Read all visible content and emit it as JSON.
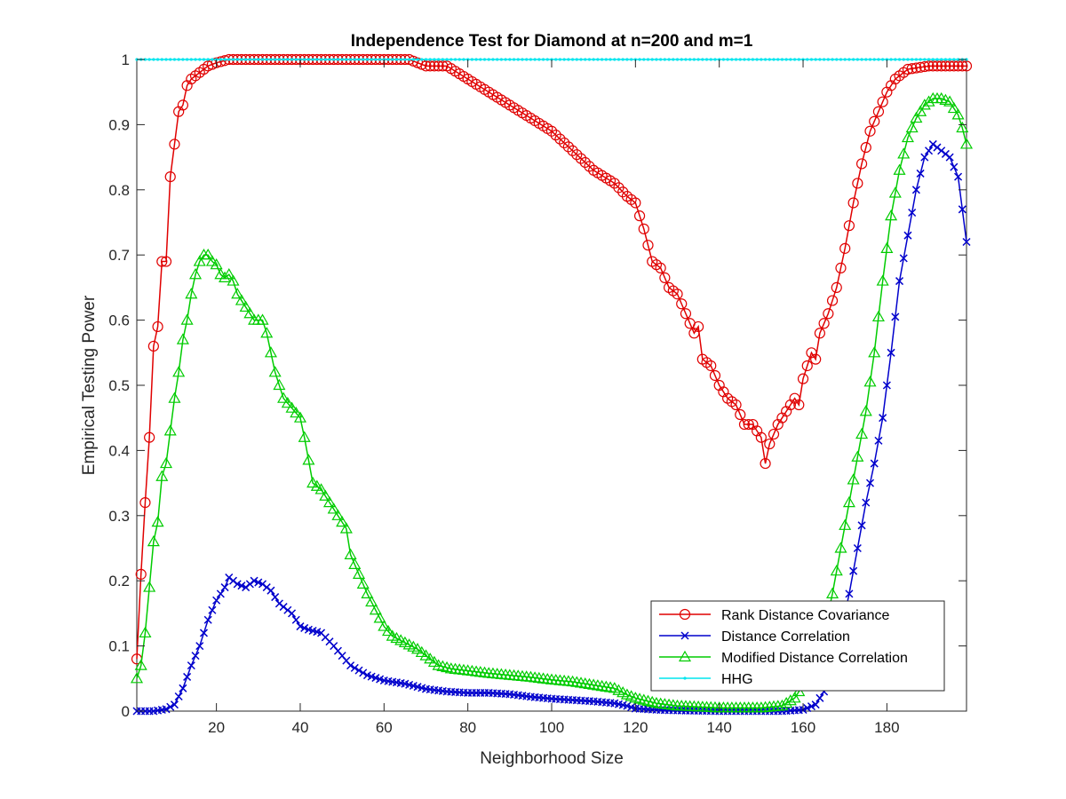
{
  "chart_data": {
    "type": "line",
    "title": "Independence Test for Diamond at n=200 and m=1",
    "xlabel": "Neighborhood Size",
    "ylabel": "Empirical Testing Power",
    "xlim": [
      1,
      199
    ],
    "ylim": [
      0,
      1
    ],
    "xticks": [
      20,
      40,
      60,
      80,
      100,
      120,
      140,
      160,
      180
    ],
    "yticks": [
      0,
      0.1,
      0.2,
      0.3,
      0.4,
      0.5,
      0.6,
      0.7,
      0.8,
      0.9,
      1
    ],
    "grid": false,
    "legend_position": "bottom-right",
    "series": [
      {
        "name": "Rank Distance Covariance",
        "color": "#E00000",
        "marker": "circle",
        "knots": [
          [
            1,
            0.08
          ],
          [
            2,
            0.21
          ],
          [
            3,
            0.32
          ],
          [
            4,
            0.42
          ],
          [
            5,
            0.56
          ],
          [
            6,
            0.59
          ],
          [
            7,
            0.69
          ],
          [
            8,
            0.69
          ],
          [
            9,
            0.82
          ],
          [
            10,
            0.87
          ],
          [
            11,
            0.92
          ],
          [
            12,
            0.93
          ],
          [
            13,
            0.96
          ],
          [
            14,
            0.97
          ],
          [
            16,
            0.98
          ],
          [
            18,
            0.99
          ],
          [
            20,
            0.995
          ],
          [
            23,
            1.0
          ],
          [
            66,
            1.0
          ],
          [
            70,
            0.99
          ],
          [
            75,
            0.99
          ],
          [
            80,
            0.97
          ],
          [
            85,
            0.95
          ],
          [
            90,
            0.93
          ],
          [
            95,
            0.91
          ],
          [
            100,
            0.89
          ],
          [
            105,
            0.86
          ],
          [
            110,
            0.83
          ],
          [
            115,
            0.81
          ],
          [
            118,
            0.79
          ],
          [
            120,
            0.78
          ],
          [
            122,
            0.74
          ],
          [
            124,
            0.69
          ],
          [
            126,
            0.68
          ],
          [
            128,
            0.65
          ],
          [
            130,
            0.64
          ],
          [
            132,
            0.61
          ],
          [
            134,
            0.58
          ],
          [
            135,
            0.59
          ],
          [
            136,
            0.54
          ],
          [
            138,
            0.53
          ],
          [
            140,
            0.5
          ],
          [
            142,
            0.48
          ],
          [
            144,
            0.47
          ],
          [
            146,
            0.44
          ],
          [
            148,
            0.44
          ],
          [
            150,
            0.42
          ],
          [
            151,
            0.38
          ],
          [
            152,
            0.41
          ],
          [
            154,
            0.44
          ],
          [
            156,
            0.46
          ],
          [
            158,
            0.48
          ],
          [
            159,
            0.47
          ],
          [
            160,
            0.51
          ],
          [
            162,
            0.55
          ],
          [
            163,
            0.54
          ],
          [
            164,
            0.58
          ],
          [
            166,
            0.61
          ],
          [
            168,
            0.65
          ],
          [
            170,
            0.71
          ],
          [
            172,
            0.78
          ],
          [
            174,
            0.84
          ],
          [
            176,
            0.89
          ],
          [
            178,
            0.92
          ],
          [
            180,
            0.95
          ],
          [
            182,
            0.97
          ],
          [
            185,
            0.985
          ],
          [
            190,
            0.99
          ],
          [
            199,
            0.99
          ]
        ]
      },
      {
        "name": "Distance Correlation",
        "color": "#0000CC",
        "marker": "x",
        "knots": [
          [
            1,
            0.0
          ],
          [
            5,
            0.0
          ],
          [
            8,
            0.003
          ],
          [
            10,
            0.01
          ],
          [
            12,
            0.035
          ],
          [
            14,
            0.07
          ],
          [
            16,
            0.1
          ],
          [
            18,
            0.14
          ],
          [
            20,
            0.17
          ],
          [
            22,
            0.19
          ],
          [
            23,
            0.205
          ],
          [
            25,
            0.195
          ],
          [
            27,
            0.19
          ],
          [
            29,
            0.2
          ],
          [
            31,
            0.195
          ],
          [
            33,
            0.185
          ],
          [
            35,
            0.165
          ],
          [
            38,
            0.15
          ],
          [
            40,
            0.13
          ],
          [
            42,
            0.125
          ],
          [
            45,
            0.12
          ],
          [
            48,
            0.1
          ],
          [
            52,
            0.07
          ],
          [
            56,
            0.055
          ],
          [
            60,
            0.047
          ],
          [
            65,
            0.042
          ],
          [
            70,
            0.034
          ],
          [
            75,
            0.03
          ],
          [
            80,
            0.028
          ],
          [
            85,
            0.028
          ],
          [
            90,
            0.026
          ],
          [
            95,
            0.022
          ],
          [
            100,
            0.019
          ],
          [
            105,
            0.017
          ],
          [
            110,
            0.015
          ],
          [
            115,
            0.012
          ],
          [
            118,
            0.008
          ],
          [
            120,
            0.004
          ],
          [
            125,
            0.002
          ],
          [
            130,
            0.001
          ],
          [
            140,
            0.0
          ],
          [
            155,
            0.0
          ],
          [
            160,
            0.002
          ],
          [
            163,
            0.01
          ],
          [
            165,
            0.03
          ],
          [
            167,
            0.07
          ],
          [
            169,
            0.12
          ],
          [
            171,
            0.18
          ],
          [
            173,
            0.25
          ],
          [
            175,
            0.32
          ],
          [
            177,
            0.38
          ],
          [
            179,
            0.45
          ],
          [
            181,
            0.55
          ],
          [
            183,
            0.66
          ],
          [
            185,
            0.73
          ],
          [
            187,
            0.8
          ],
          [
            189,
            0.85
          ],
          [
            191,
            0.87
          ],
          [
            193,
            0.86
          ],
          [
            195,
            0.85
          ],
          [
            197,
            0.82
          ],
          [
            198,
            0.77
          ],
          [
            199,
            0.72
          ]
        ]
      },
      {
        "name": "Modified Distance Correlation",
        "color": "#00CC00",
        "marker": "triangle",
        "knots": [
          [
            1,
            0.05
          ],
          [
            2,
            0.07
          ],
          [
            3,
            0.12
          ],
          [
            4,
            0.19
          ],
          [
            5,
            0.26
          ],
          [
            6,
            0.29
          ],
          [
            7,
            0.36
          ],
          [
            8,
            0.38
          ],
          [
            9,
            0.43
          ],
          [
            10,
            0.48
          ],
          [
            11,
            0.52
          ],
          [
            12,
            0.57
          ],
          [
            13,
            0.6
          ],
          [
            14,
            0.64
          ],
          [
            15,
            0.67
          ],
          [
            16,
            0.69
          ],
          [
            17,
            0.7
          ],
          [
            18,
            0.7
          ],
          [
            19,
            0.69
          ],
          [
            20,
            0.685
          ],
          [
            21,
            0.67
          ],
          [
            22,
            0.665
          ],
          [
            23,
            0.67
          ],
          [
            24,
            0.66
          ],
          [
            25,
            0.64
          ],
          [
            27,
            0.62
          ],
          [
            29,
            0.6
          ],
          [
            31,
            0.6
          ],
          [
            32,
            0.58
          ],
          [
            34,
            0.52
          ],
          [
            36,
            0.48
          ],
          [
            38,
            0.465
          ],
          [
            40,
            0.45
          ],
          [
            41,
            0.42
          ],
          [
            43,
            0.35
          ],
          [
            45,
            0.34
          ],
          [
            47,
            0.32
          ],
          [
            49,
            0.3
          ],
          [
            51,
            0.28
          ],
          [
            52,
            0.24
          ],
          [
            54,
            0.21
          ],
          [
            56,
            0.18
          ],
          [
            58,
            0.155
          ],
          [
            60,
            0.13
          ],
          [
            62,
            0.115
          ],
          [
            65,
            0.105
          ],
          [
            68,
            0.095
          ],
          [
            70,
            0.085
          ],
          [
            73,
            0.07
          ],
          [
            76,
            0.065
          ],
          [
            80,
            0.062
          ],
          [
            85,
            0.058
          ],
          [
            90,
            0.055
          ],
          [
            95,
            0.052
          ],
          [
            100,
            0.048
          ],
          [
            105,
            0.045
          ],
          [
            110,
            0.04
          ],
          [
            115,
            0.035
          ],
          [
            118,
            0.025
          ],
          [
            120,
            0.02
          ],
          [
            125,
            0.012
          ],
          [
            130,
            0.008
          ],
          [
            140,
            0.005
          ],
          [
            150,
            0.005
          ],
          [
            155,
            0.008
          ],
          [
            158,
            0.02
          ],
          [
            160,
            0.04
          ],
          [
            163,
            0.07
          ],
          [
            165,
            0.12
          ],
          [
            167,
            0.18
          ],
          [
            169,
            0.25
          ],
          [
            171,
            0.32
          ],
          [
            173,
            0.39
          ],
          [
            175,
            0.46
          ],
          [
            177,
            0.55
          ],
          [
            179,
            0.66
          ],
          [
            181,
            0.76
          ],
          [
            183,
            0.83
          ],
          [
            185,
            0.88
          ],
          [
            187,
            0.91
          ],
          [
            189,
            0.93
          ],
          [
            191,
            0.94
          ],
          [
            193,
            0.94
          ],
          [
            195,
            0.935
          ],
          [
            197,
            0.915
          ],
          [
            198,
            0.895
          ],
          [
            199,
            0.87
          ]
        ]
      },
      {
        "name": "HHG",
        "color": "#00E5EE",
        "marker": "dot",
        "knots": [
          [
            1,
            1.0
          ],
          [
            199,
            1.0
          ]
        ]
      }
    ]
  }
}
